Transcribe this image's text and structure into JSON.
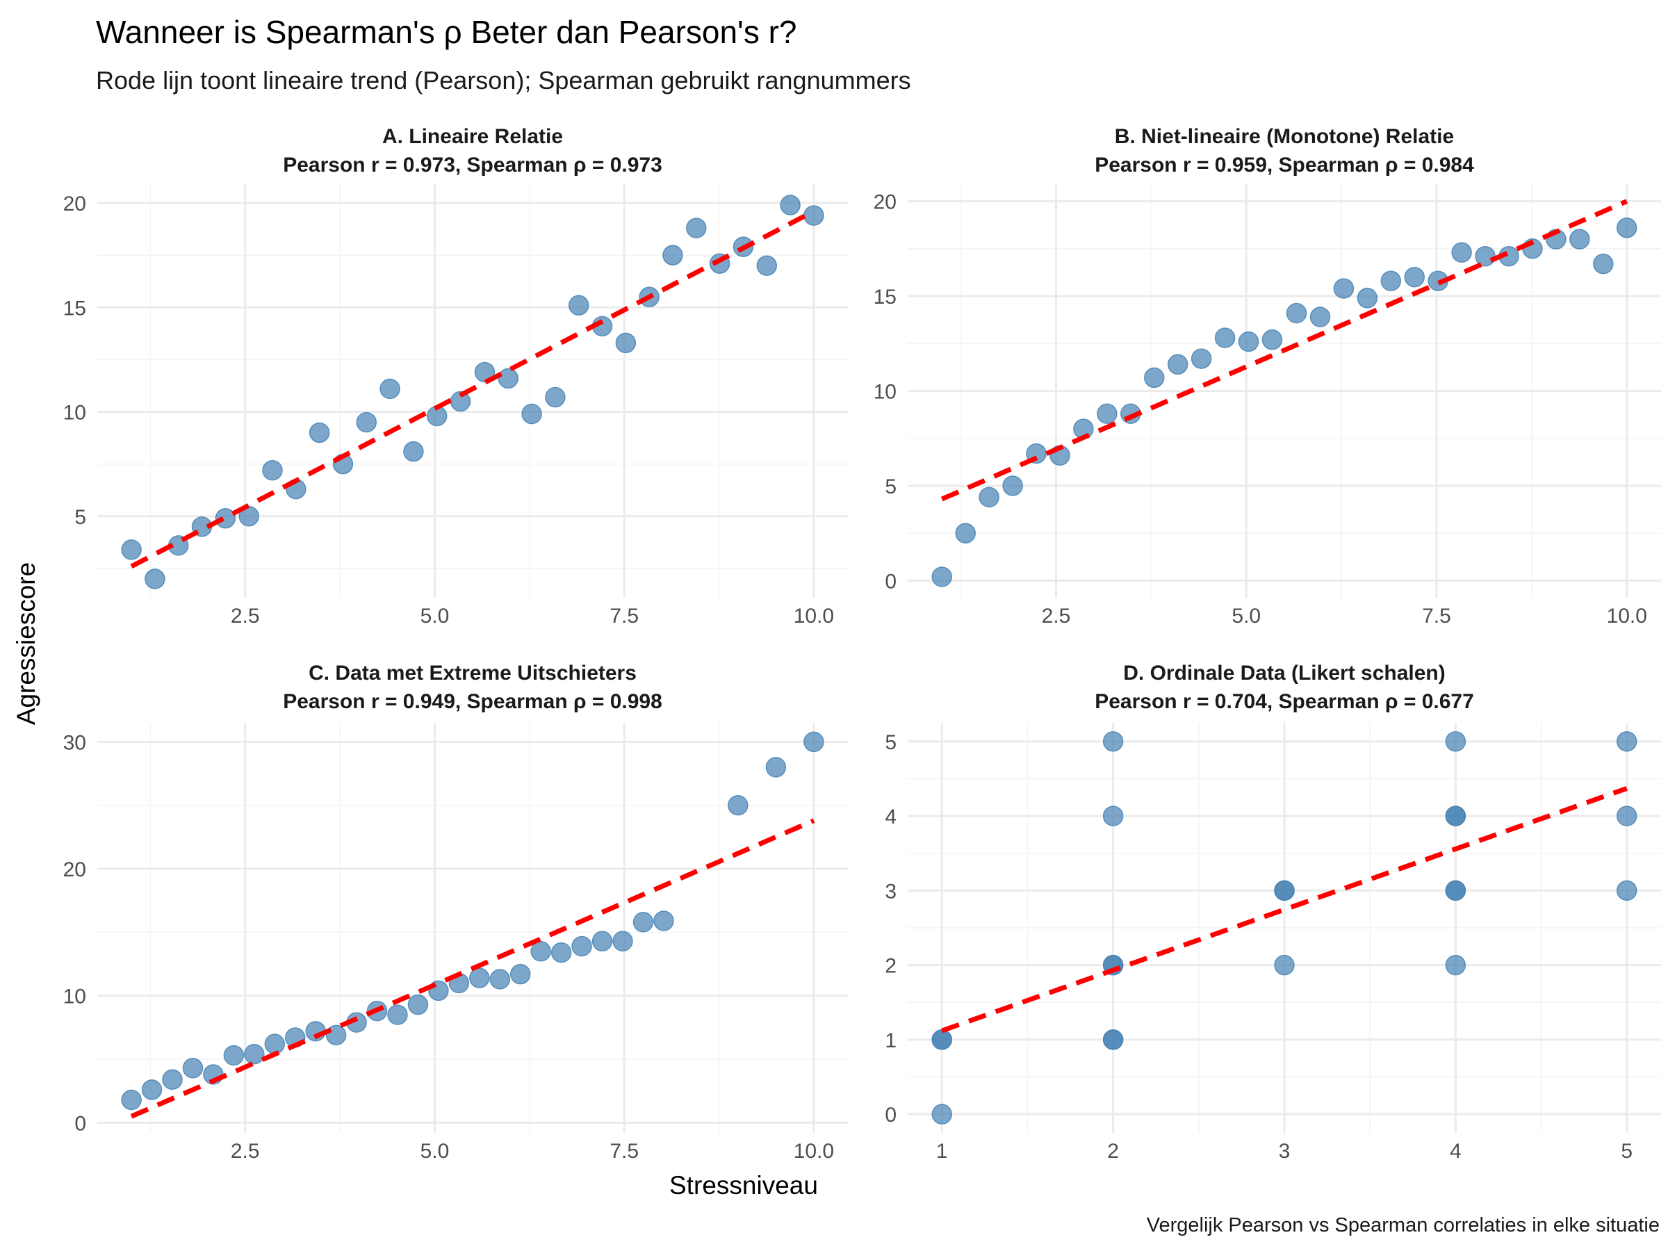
{
  "title": "Wanneer is Spearman's ρ Beter dan Pearson's r?",
  "subtitle": "Rode lijn toont lineaire trend (Pearson); Spearman gebruikt rangnummers",
  "xlabel": "Stressniveau",
  "ylabel": "Agressiescore",
  "caption": "Vergelijk Pearson vs Spearman correlaties in elke situatie",
  "colors": {
    "points": "#4682B4",
    "trend": "#FF0000",
    "grid": "#EBEBEB"
  },
  "chart_data": [
    {
      "type": "scatter",
      "title": "A. Lineaire Relatie",
      "stats": "Pearson r = 0.973, Spearman ρ = 0.973",
      "xlim": [
        0.55,
        10.45
      ],
      "ylim": [
        1.1,
        20.9
      ],
      "x_ticks": [
        2.5,
        5.0,
        7.5,
        10.0
      ],
      "x_tick_labels": [
        "2.5",
        "5.0",
        "7.5",
        "10.0"
      ],
      "y_ticks": [
        5,
        10,
        15,
        20
      ],
      "y_tick_labels": [
        "5",
        "10",
        "15",
        "20"
      ],
      "trend": {
        "x": [
          1.0,
          10.0
        ],
        "y": [
          2.6,
          19.6
        ]
      },
      "points": [
        [
          1.0,
          3.4
        ],
        [
          1.31,
          2.0
        ],
        [
          1.62,
          3.6
        ],
        [
          1.93,
          4.5
        ],
        [
          2.24,
          4.9
        ],
        [
          2.55,
          5.0
        ],
        [
          2.86,
          7.2
        ],
        [
          3.17,
          6.3
        ],
        [
          3.48,
          9.0
        ],
        [
          3.79,
          7.5
        ],
        [
          4.1,
          9.5
        ],
        [
          4.41,
          11.1
        ],
        [
          4.72,
          8.1
        ],
        [
          5.03,
          9.8
        ],
        [
          5.34,
          10.5
        ],
        [
          5.66,
          11.9
        ],
        [
          5.97,
          11.6
        ],
        [
          6.28,
          9.9
        ],
        [
          6.59,
          10.7
        ],
        [
          6.9,
          15.1
        ],
        [
          7.21,
          14.1
        ],
        [
          7.52,
          13.3
        ],
        [
          7.83,
          15.5
        ],
        [
          8.14,
          17.5
        ],
        [
          8.45,
          18.8
        ],
        [
          8.76,
          17.1
        ],
        [
          9.07,
          17.9
        ],
        [
          9.38,
          17.0
        ],
        [
          9.69,
          19.9
        ],
        [
          10.0,
          19.4
        ]
      ]
    },
    {
      "type": "scatter",
      "title": "B. Niet-lineaire (Monotone) Relatie",
      "stats": "Pearson r = 0.959, Spearman ρ = 0.984",
      "xlim": [
        0.55,
        10.45
      ],
      "ylim": [
        -0.9,
        20.9
      ],
      "x_ticks": [
        2.5,
        5.0,
        7.5,
        10.0
      ],
      "x_tick_labels": [
        "2.5",
        "5.0",
        "7.5",
        "10.0"
      ],
      "y_ticks": [
        0,
        5,
        10,
        15,
        20
      ],
      "y_tick_labels": [
        "0",
        "5",
        "10",
        "15",
        "20"
      ],
      "trend": {
        "x": [
          1.0,
          10.0
        ],
        "y": [
          4.3,
          20.0
        ]
      },
      "points": [
        [
          1.0,
          0.2
        ],
        [
          1.31,
          2.5
        ],
        [
          1.62,
          4.4
        ],
        [
          1.93,
          5.0
        ],
        [
          2.24,
          6.7
        ],
        [
          2.55,
          6.6
        ],
        [
          2.86,
          8.0
        ],
        [
          3.17,
          8.8
        ],
        [
          3.48,
          8.8
        ],
        [
          3.79,
          10.7
        ],
        [
          4.1,
          11.4
        ],
        [
          4.41,
          11.7
        ],
        [
          4.72,
          12.8
        ],
        [
          5.03,
          12.6
        ],
        [
          5.34,
          12.7
        ],
        [
          5.66,
          14.1
        ],
        [
          5.97,
          13.9
        ],
        [
          6.28,
          15.4
        ],
        [
          6.59,
          14.9
        ],
        [
          6.9,
          15.8
        ],
        [
          7.21,
          16.0
        ],
        [
          7.52,
          15.8
        ],
        [
          7.83,
          17.3
        ],
        [
          8.14,
          17.1
        ],
        [
          8.45,
          17.1
        ],
        [
          8.76,
          17.5
        ],
        [
          9.07,
          18.0
        ],
        [
          9.38,
          18.0
        ],
        [
          9.69,
          16.7
        ],
        [
          10.0,
          18.6
        ]
      ]
    },
    {
      "type": "scatter",
      "title": "C. Data met Extreme Uitschieters",
      "stats": "Pearson r = 0.949, Spearman ρ = 0.998",
      "xlim": [
        0.55,
        10.45
      ],
      "ylim": [
        -0.8,
        31.5
      ],
      "x_ticks": [
        2.5,
        5.0,
        7.5,
        10.0
      ],
      "x_tick_labels": [
        "2.5",
        "5.0",
        "7.5",
        "10.0"
      ],
      "y_ticks": [
        0,
        10,
        20,
        30
      ],
      "y_tick_labels": [
        "0",
        "10",
        "20",
        "30"
      ],
      "trend": {
        "x": [
          1.0,
          10.0
        ],
        "y": [
          0.5,
          23.8
        ]
      },
      "points": [
        [
          1.0,
          1.8
        ],
        [
          1.27,
          2.6
        ],
        [
          1.54,
          3.4
        ],
        [
          1.81,
          4.3
        ],
        [
          2.08,
          3.8
        ],
        [
          2.35,
          5.3
        ],
        [
          2.62,
          5.4
        ],
        [
          2.89,
          6.2
        ],
        [
          3.16,
          6.7
        ],
        [
          3.43,
          7.2
        ],
        [
          3.7,
          6.9
        ],
        [
          3.97,
          7.9
        ],
        [
          4.24,
          8.8
        ],
        [
          4.51,
          8.5
        ],
        [
          4.78,
          9.3
        ],
        [
          5.05,
          10.4
        ],
        [
          5.32,
          11.0
        ],
        [
          5.59,
          11.4
        ],
        [
          5.86,
          11.3
        ],
        [
          6.13,
          11.7
        ],
        [
          6.4,
          13.5
        ],
        [
          6.67,
          13.4
        ],
        [
          6.94,
          13.9
        ],
        [
          7.21,
          14.3
        ],
        [
          7.48,
          14.3
        ],
        [
          7.75,
          15.8
        ],
        [
          8.02,
          15.9
        ],
        [
          9.0,
          25.0
        ],
        [
          9.5,
          28.0
        ],
        [
          10.0,
          30.0
        ]
      ]
    },
    {
      "type": "scatter",
      "title": "D. Ordinale Data (Likert schalen)",
      "stats": "Pearson r = 0.704, Spearman ρ = 0.677",
      "xlim": [
        0.8,
        5.2
      ],
      "ylim": [
        -0.25,
        5.25
      ],
      "x_ticks": [
        1,
        2,
        3,
        4,
        5
      ],
      "x_tick_labels": [
        "1",
        "2",
        "3",
        "4",
        "5"
      ],
      "y_ticks": [
        0,
        1,
        2,
        3,
        4,
        5
      ],
      "y_tick_labels": [
        "0",
        "1",
        "2",
        "3",
        "4",
        "5"
      ],
      "trend": {
        "x": [
          1.0,
          5.0
        ],
        "y": [
          1.12,
          4.37
        ]
      },
      "points": [
        [
          1,
          0
        ],
        [
          1,
          1
        ],
        [
          1,
          1
        ],
        [
          2,
          1
        ],
        [
          2,
          1
        ],
        [
          2,
          2
        ],
        [
          2,
          2
        ],
        [
          2,
          4
        ],
        [
          2,
          5
        ],
        [
          3,
          2
        ],
        [
          3,
          3
        ],
        [
          3,
          3
        ],
        [
          4,
          2
        ],
        [
          4,
          3
        ],
        [
          4,
          3
        ],
        [
          4,
          4
        ],
        [
          4,
          4
        ],
        [
          4,
          5
        ],
        [
          5,
          3
        ],
        [
          5,
          4
        ],
        [
          5,
          5
        ]
      ]
    }
  ]
}
